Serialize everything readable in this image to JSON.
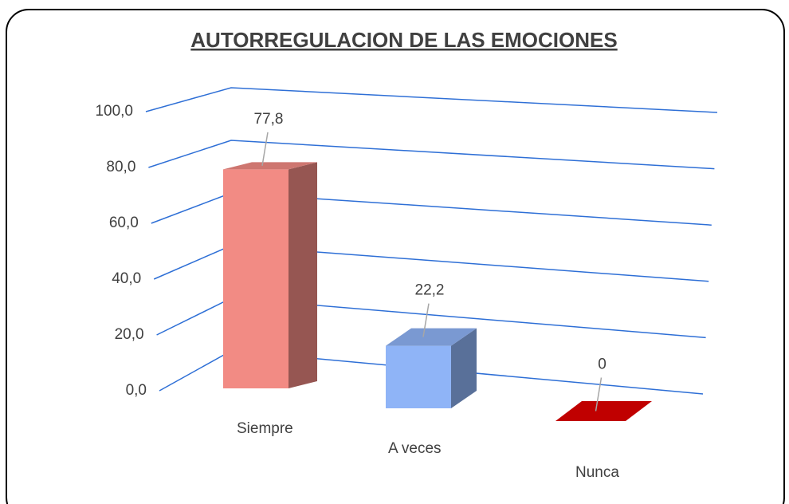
{
  "chart_data": {
    "type": "bar3d",
    "title": "AUTORREGULACION DE LAS EMOCIONES",
    "categories": [
      "Siempre",
      "A veces",
      "Nunca"
    ],
    "values": [
      77.8,
      22.2,
      0
    ],
    "value_labels": [
      "77,8",
      "22,2",
      "0"
    ],
    "colors": [
      "#f28b84",
      "#8fb4f7",
      "#c00000"
    ],
    "ylim": [
      0,
      100
    ],
    "yticks": [
      {
        "value": 0,
        "label": "0,0"
      },
      {
        "value": 20,
        "label": "20,0"
      },
      {
        "value": 40,
        "label": "40,0"
      },
      {
        "value": 60,
        "label": "60,0"
      },
      {
        "value": 80,
        "label": "80,0"
      },
      {
        "value": 100,
        "label": "100,0"
      }
    ],
    "grid": true,
    "grid_color": "#2e6fd6"
  }
}
